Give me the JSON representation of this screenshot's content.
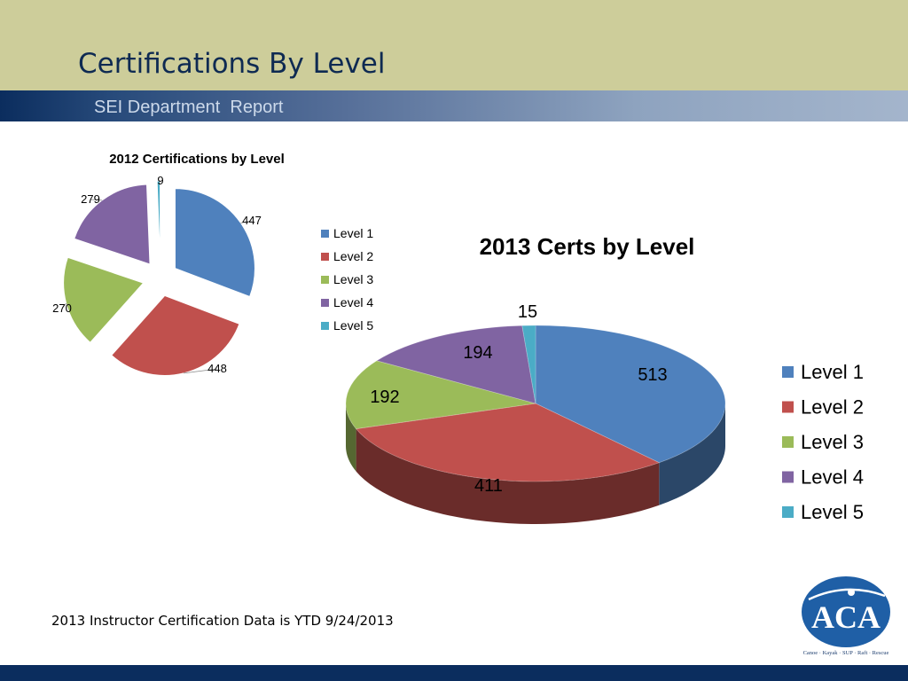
{
  "slide": {
    "title": "Certifications By Level",
    "subtitle": "SEI Department  Report",
    "footnote": "2013 Instructor Certification Data is YTD 9/24/2013"
  },
  "logo": {
    "text": "ACA",
    "tagline": "Canoe · Kayak · SUP · Raft · Rescue",
    "icon": "paddler-icon"
  },
  "colors": {
    "header": "#cdcd9a",
    "band_dark": "#0b2d5e",
    "level1": "#4f81bd",
    "level2": "#c0504d",
    "level3": "#9bbb59",
    "level4": "#8064a2",
    "level5": "#4bacc6"
  },
  "chart_data": [
    {
      "type": "pie",
      "title": "2012 Certifications by Level",
      "categories": [
        "Level 1",
        "Level 2",
        "Level 3",
        "Level 4",
        "Level 5"
      ],
      "values": [
        447,
        448,
        270,
        279,
        9
      ],
      "legend_position": "right",
      "exploded": true
    },
    {
      "type": "pie",
      "title": "2013 Certs by Level",
      "categories": [
        "Level 1",
        "Level 2",
        "Level 3",
        "Level 4",
        "Level 5"
      ],
      "values": [
        513,
        411,
        192,
        194,
        15
      ],
      "legend_position": "right",
      "style": "3d"
    }
  ]
}
